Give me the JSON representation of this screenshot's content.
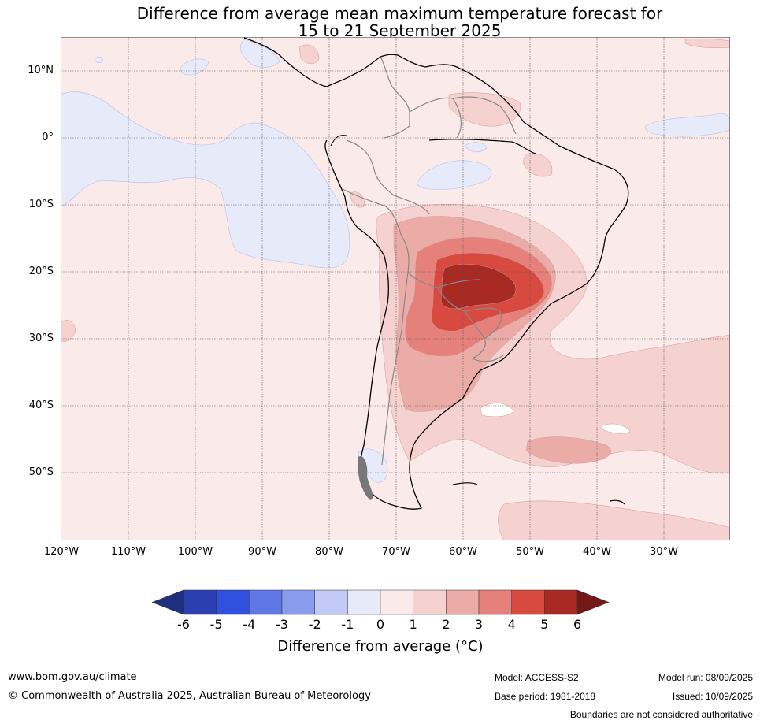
{
  "title": {
    "line1": "Difference from average mean maximum temperature forecast for",
    "line2": "15 to 21 September 2025"
  },
  "axes": {
    "lat_labels": [
      "10°N",
      "0°",
      "10°S",
      "20°S",
      "30°S",
      "40°S",
      "50°S"
    ],
    "lon_labels": [
      "120°W",
      "110°W",
      "100°W",
      "90°W",
      "80°W",
      "70°W",
      "60°W",
      "50°W",
      "40°W",
      "30°W"
    ]
  },
  "colorbar": {
    "ticks": [
      "-6",
      "-5",
      "-4",
      "-3",
      "-2",
      "-1",
      "0",
      "1",
      "2",
      "3",
      "4",
      "5",
      "6"
    ],
    "colors": [
      "#1f2f7f",
      "#2b3fb0",
      "#3050e0",
      "#5f78e6",
      "#8a9ced",
      "#c2c9f4",
      "#e6eaf9",
      "#fbeaea",
      "#f5d2d0",
      "#ebaca8",
      "#e5807a",
      "#d84a40",
      "#a82a22",
      "#731a16"
    ],
    "label": "Difference from average (°C)"
  },
  "footer": {
    "url": "www.bom.gov.au/climate",
    "copyright": "© Commonwealth of Australia 2025, Australian Bureau of Meteorology",
    "model": "Model: ACCESS-S2",
    "base_period": "Base period: 1981-2018",
    "model_run": "Model run: 08/09/2025",
    "issued": "Issued: 10/09/2025",
    "boundaries": "Boundaries are not considered authoritative"
  }
}
